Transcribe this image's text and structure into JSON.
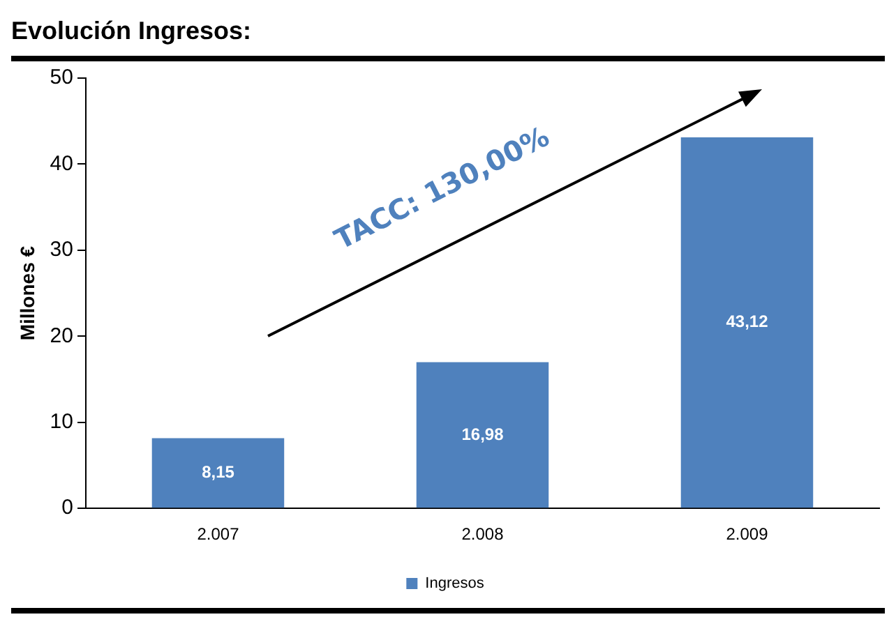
{
  "chart_data": {
    "type": "bar",
    "title": "Evolución Ingresos:",
    "ylabel": "Millones €",
    "categories": [
      "2.007",
      "2.008",
      "2.009"
    ],
    "series": [
      {
        "name": "Ingresos",
        "color": "#4f81bd",
        "values": [
          8.15,
          16.98,
          43.12
        ],
        "value_labels": [
          "8,15",
          "16,98",
          "43,12"
        ]
      }
    ],
    "ylim": [
      0,
      50
    ],
    "yticks": [
      0,
      10,
      20,
      30,
      40,
      50
    ],
    "grid": false,
    "legend": "bottom",
    "annotations": [
      "TACC: 130,00%"
    ]
  }
}
